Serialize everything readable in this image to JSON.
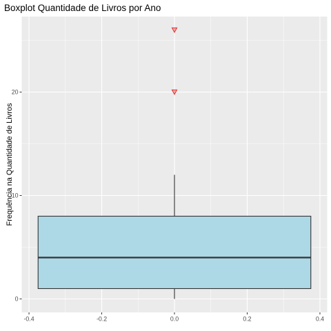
{
  "chart_data": {
    "type": "boxplot",
    "title": "Boxplot Quantidade de Livros por Ano",
    "xlabel": "",
    "ylabel": "Frequência na Quantidade de Livros",
    "xlim": [
      -0.4,
      0.4
    ],
    "ylim": [
      0,
      26
    ],
    "x_ticks": [
      -0.4,
      -0.2,
      0.0,
      0.2,
      0.4
    ],
    "x_tick_labels": [
      "-0.4",
      "-0.2",
      "0.0",
      "0.2",
      "0.4"
    ],
    "y_ticks": [
      0,
      10,
      20
    ],
    "y_tick_labels": [
      "0",
      "10",
      "20"
    ],
    "grid": true,
    "legend": "none",
    "box": {
      "x": 0.0,
      "width": 0.75,
      "min": 0,
      "q1": 1,
      "median": 4,
      "q3": 8,
      "max": 12,
      "outliers": [
        20,
        26
      ]
    },
    "colors": {
      "panel_background": "#ebebeb",
      "grid_major": "#ffffff",
      "box_fill": "#add8e6",
      "box_stroke": "#333333",
      "outlier_fill": "#f4a8a8",
      "outlier_stroke": "#dd2222"
    }
  }
}
